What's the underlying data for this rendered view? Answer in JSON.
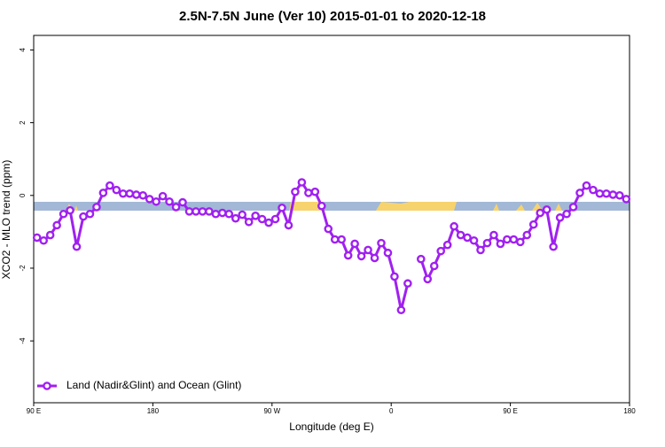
{
  "chart_data": {
    "type": "line",
    "title": "2.5N-7.5N June (Ver 10)   2015-01-01 to 2020-12-18",
    "xlabel": "Longitude (deg E)",
    "ylabel": "XCO2 - MLO trend (ppm)",
    "xlim": [
      90,
      540
    ],
    "ylim": [
      -5.7,
      4.4
    ],
    "xticks": [
      {
        "value": 90,
        "label": "90 E"
      },
      180,
      {
        "value": 270,
        "label": "90 W"
      },
      {
        "value": 360,
        "label": "0"
      },
      {
        "value": 450,
        "label": "90 E"
      },
      {
        "value": 540,
        "label": "180"
      }
    ],
    "yticks": [
      4,
      2,
      0,
      -2,
      -4
    ],
    "legend": "bottom-left",
    "x": [
      92.5,
      97.5,
      102.5,
      107.5,
      112.5,
      117.5,
      122.5,
      127.5,
      132.5,
      137.5,
      142.5,
      147.5,
      152.5,
      157.5,
      162.5,
      167.5,
      172.5,
      177.5,
      182.5,
      187.5,
      192.5,
      197.5,
      202.5,
      207.5,
      212.5,
      217.5,
      222.5,
      227.5,
      232.5,
      237.5,
      242.5,
      247.5,
      252.5,
      257.5,
      262.5,
      267.5,
      272.5,
      277.5,
      282.5,
      287.5,
      292.5,
      297.5,
      302.5,
      307.5,
      312.5,
      317.5,
      322.5,
      327.5,
      332.5,
      337.5,
      342.5,
      347.5,
      352.5,
      357.5,
      362.5,
      367.5,
      372.5,
      377.5,
      382.5,
      387.5,
      392.5,
      397.5,
      402.5,
      407.5,
      412.5,
      417.5,
      422.5,
      427.5,
      432.5,
      437.5,
      442.5,
      447.5,
      452.5,
      457.5,
      462.5,
      467.5,
      472.5,
      477.5,
      482.5,
      487.5,
      492.5,
      497.5,
      502.5,
      507.5,
      512.5,
      517.5,
      522.5,
      527.5,
      532.5,
      537.5
    ],
    "series": [
      {
        "name": "Land (Nadir&Glint) and Ocean (Glint)",
        "color": "#a020f0",
        "values": [
          -1.16,
          -1.24,
          -1.09,
          -0.82,
          -0.51,
          -0.41,
          -1.41,
          -0.58,
          -0.51,
          -0.32,
          0.07,
          0.27,
          0.15,
          0.05,
          0.05,
          0.02,
          0,
          -0.1,
          -0.17,
          -0.02,
          -0.17,
          -0.32,
          -0.19,
          -0.44,
          -0.44,
          -0.44,
          -0.44,
          -0.51,
          -0.48,
          -0.51,
          -0.63,
          -0.53,
          -0.73,
          -0.56,
          -0.65,
          -0.75,
          -0.65,
          -0.34,
          -0.82,
          0.1,
          0.36,
          0.07,
          0.1,
          -0.29,
          -0.92,
          -1.21,
          -1.21,
          -1.65,
          -1.33,
          -1.67,
          -1.5,
          -1.72,
          -1.31,
          -1.58,
          -2.23,
          -3.15,
          -2.42,
          null,
          -1.75,
          -2.3,
          -1.94,
          -1.53,
          -1.36,
          -0.85,
          -1.09,
          -1.16,
          -1.24,
          -1.5,
          -1.31,
          -1.09,
          -1.33,
          -1.21,
          -1.21,
          -1.28,
          -1.09,
          -0.8,
          -0.48,
          -0.39,
          -1.41,
          -0.61,
          -0.51,
          -0.32,
          0.07,
          0.27,
          0.15,
          0.05,
          0.05,
          0.02,
          0,
          -0.1
        ]
      }
    ]
  }
}
